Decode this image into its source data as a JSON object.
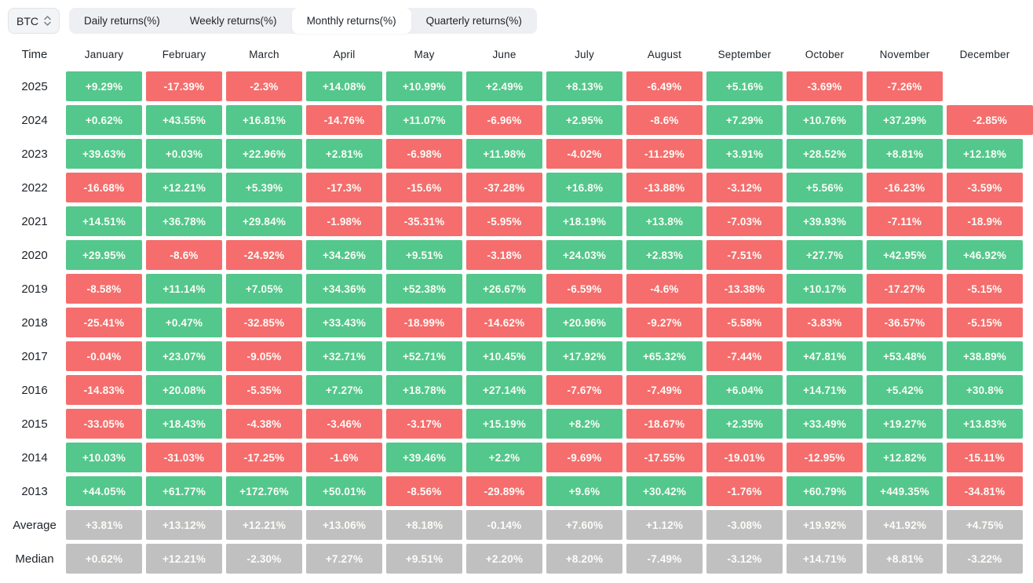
{
  "controls": {
    "symbol": "BTC",
    "tabs": [
      {
        "label": "Daily returns(%)",
        "selected": false
      },
      {
        "label": "Weekly returns(%)",
        "selected": false
      },
      {
        "label": "Monthly returns(%)",
        "selected": true
      },
      {
        "label": "Quarterly returns(%)",
        "selected": false
      }
    ]
  },
  "colors": {
    "positive": "#53C78C",
    "negative": "#F56D6D",
    "summary": "#C1C0C0"
  },
  "table": {
    "time_header": "Time",
    "months": [
      "January",
      "February",
      "March",
      "April",
      "May",
      "June",
      "July",
      "August",
      "September",
      "October",
      "November",
      "December"
    ],
    "rows": [
      {
        "label": "2025",
        "type": "year",
        "values": [
          "+9.29%",
          "-17.39%",
          "-2.3%",
          "+14.08%",
          "+10.99%",
          "+2.49%",
          "+8.13%",
          "-6.49%",
          "+5.16%",
          "-3.69%",
          "-7.26%",
          null
        ]
      },
      {
        "label": "2024",
        "type": "year",
        "values": [
          "+0.62%",
          "+43.55%",
          "+16.81%",
          "-14.76%",
          "+11.07%",
          "-6.96%",
          "+2.95%",
          "-8.6%",
          "+7.29%",
          "+10.76%",
          "+37.29%",
          "-2.85%"
        ]
      },
      {
        "label": "2023",
        "type": "year",
        "values": [
          "+39.63%",
          "+0.03%",
          "+22.96%",
          "+2.81%",
          "-6.98%",
          "+11.98%",
          "-4.02%",
          "-11.29%",
          "+3.91%",
          "+28.52%",
          "+8.81%",
          "+12.18%"
        ]
      },
      {
        "label": "2022",
        "type": "year",
        "values": [
          "-16.68%",
          "+12.21%",
          "+5.39%",
          "-17.3%",
          "-15.6%",
          "-37.28%",
          "+16.8%",
          "-13.88%",
          "-3.12%",
          "+5.56%",
          "-16.23%",
          "-3.59%"
        ]
      },
      {
        "label": "2021",
        "type": "year",
        "values": [
          "+14.51%",
          "+36.78%",
          "+29.84%",
          "-1.98%",
          "-35.31%",
          "-5.95%",
          "+18.19%",
          "+13.8%",
          "-7.03%",
          "+39.93%",
          "-7.11%",
          "-18.9%"
        ]
      },
      {
        "label": "2020",
        "type": "year",
        "values": [
          "+29.95%",
          "-8.6%",
          "-24.92%",
          "+34.26%",
          "+9.51%",
          "-3.18%",
          "+24.03%",
          "+2.83%",
          "-7.51%",
          "+27.7%",
          "+42.95%",
          "+46.92%"
        ]
      },
      {
        "label": "2019",
        "type": "year",
        "values": [
          "-8.58%",
          "+11.14%",
          "+7.05%",
          "+34.36%",
          "+52.38%",
          "+26.67%",
          "-6.59%",
          "-4.6%",
          "-13.38%",
          "+10.17%",
          "-17.27%",
          "-5.15%"
        ]
      },
      {
        "label": "2018",
        "type": "year",
        "values": [
          "-25.41%",
          "+0.47%",
          "-32.85%",
          "+33.43%",
          "-18.99%",
          "-14.62%",
          "+20.96%",
          "-9.27%",
          "-5.58%",
          "-3.83%",
          "-36.57%",
          "-5.15%"
        ]
      },
      {
        "label": "2017",
        "type": "year",
        "values": [
          "-0.04%",
          "+23.07%",
          "-9.05%",
          "+32.71%",
          "+52.71%",
          "+10.45%",
          "+17.92%",
          "+65.32%",
          "-7.44%",
          "+47.81%",
          "+53.48%",
          "+38.89%"
        ]
      },
      {
        "label": "2016",
        "type": "year",
        "values": [
          "-14.83%",
          "+20.08%",
          "-5.35%",
          "+7.27%",
          "+18.78%",
          "+27.14%",
          "-7.67%",
          "-7.49%",
          "+6.04%",
          "+14.71%",
          "+5.42%",
          "+30.8%"
        ]
      },
      {
        "label": "2015",
        "type": "year",
        "values": [
          "-33.05%",
          "+18.43%",
          "-4.38%",
          "-3.46%",
          "-3.17%",
          "+15.19%",
          "+8.2%",
          "-18.67%",
          "+2.35%",
          "+33.49%",
          "+19.27%",
          "+13.83%"
        ]
      },
      {
        "label": "2014",
        "type": "year",
        "values": [
          "+10.03%",
          "-31.03%",
          "-17.25%",
          "-1.6%",
          "+39.46%",
          "+2.2%",
          "-9.69%",
          "-17.55%",
          "-19.01%",
          "-12.95%",
          "+12.82%",
          "-15.11%"
        ]
      },
      {
        "label": "2013",
        "type": "year",
        "values": [
          "+44.05%",
          "+61.77%",
          "+172.76%",
          "+50.01%",
          "-8.56%",
          "-29.89%",
          "+9.6%",
          "+30.42%",
          "-1.76%",
          "+60.79%",
          "+449.35%",
          "-34.81%"
        ]
      },
      {
        "label": "Average",
        "type": "summary",
        "values": [
          "+3.81%",
          "+13.12%",
          "+12.21%",
          "+13.06%",
          "+8.18%",
          "-0.14%",
          "+7.60%",
          "+1.12%",
          "-3.08%",
          "+19.92%",
          "+41.92%",
          "+4.75%"
        ]
      },
      {
        "label": "Median",
        "type": "summary",
        "values": [
          "+0.62%",
          "+12.21%",
          "-2.30%",
          "+7.27%",
          "+9.51%",
          "+2.20%",
          "+8.20%",
          "-7.49%",
          "-3.12%",
          "+14.71%",
          "+8.81%",
          "-3.22%"
        ]
      }
    ]
  }
}
